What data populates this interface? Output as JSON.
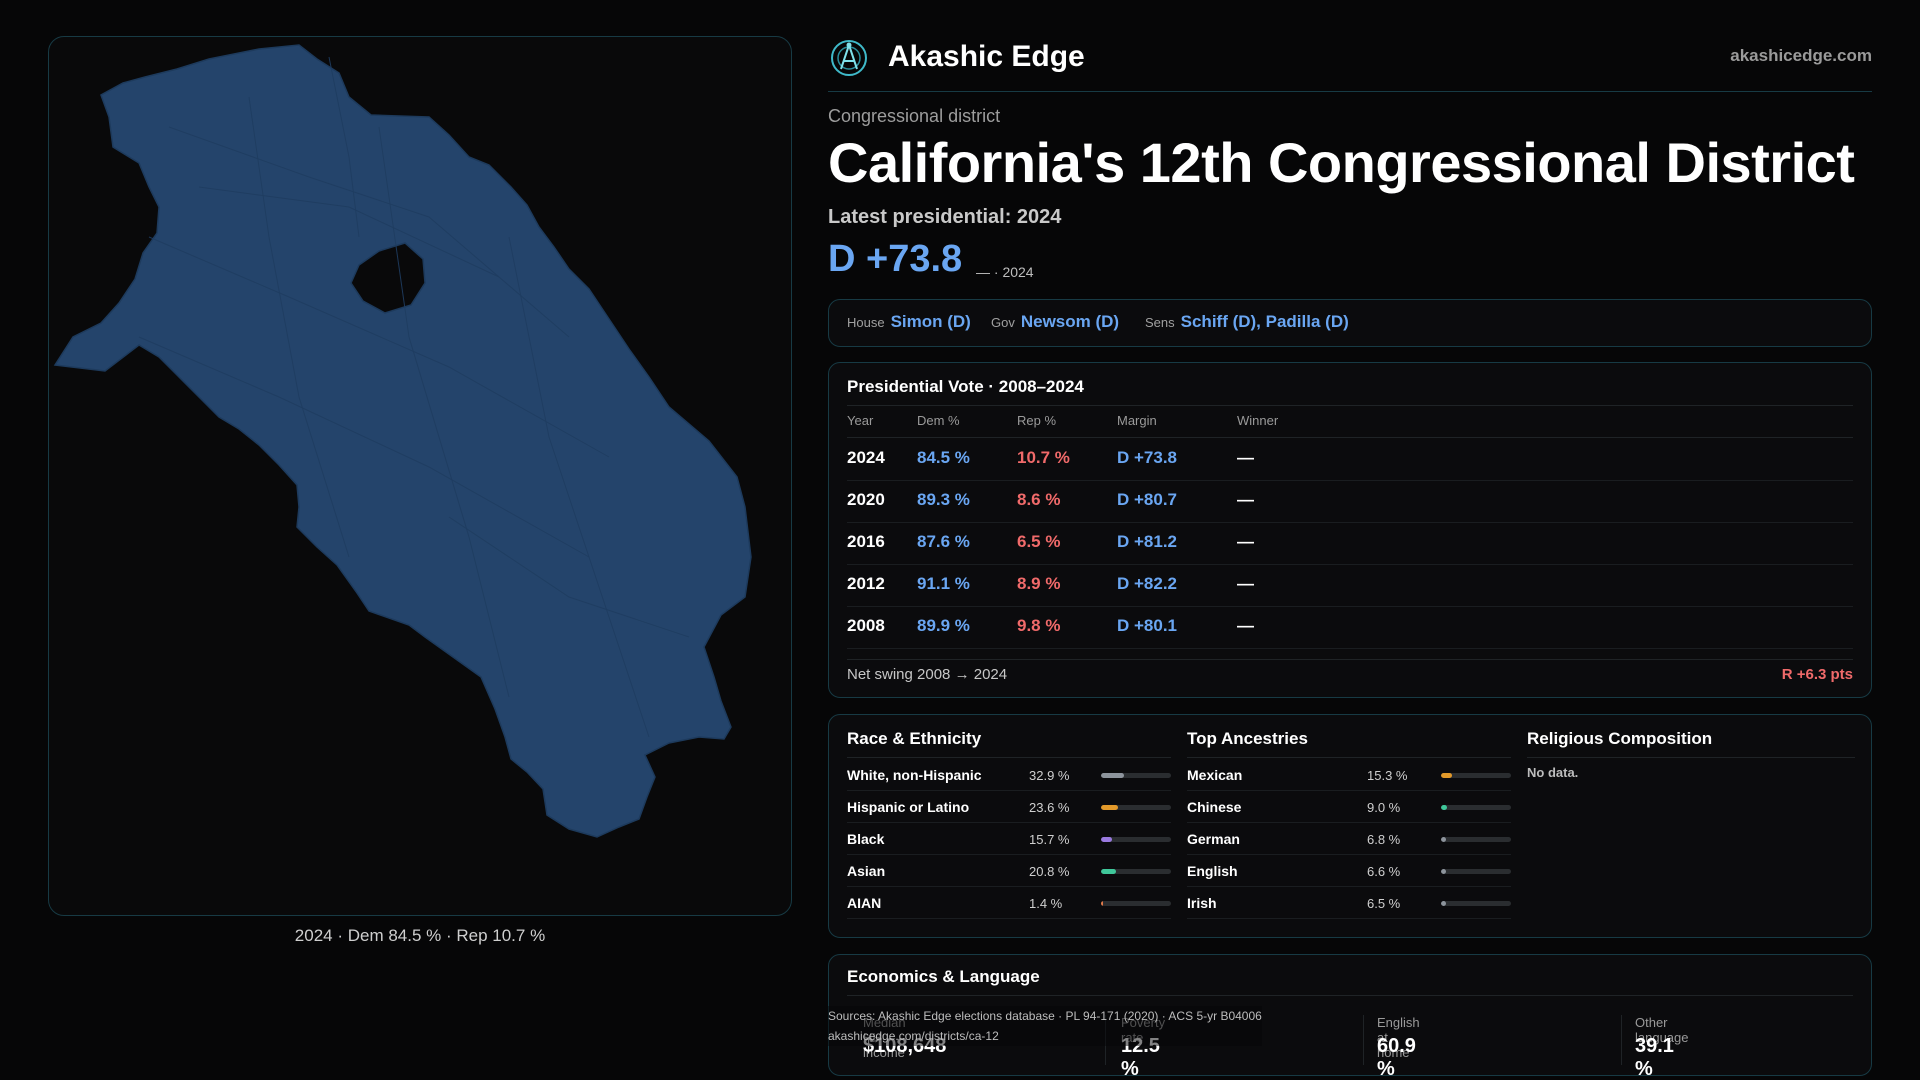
{
  "map": {
    "caption": "2024 · Dem 84.5 % · Rep 10.7 %",
    "fill_color": "#24446b",
    "stroke_color": "#1d3a5c"
  },
  "header": {
    "brand": "Akashic Edge",
    "site": "akashicedge.com",
    "logo_icon": "akashic-logo-icon"
  },
  "district": {
    "kicker": "Congressional district",
    "title": "California's 12th Congressional District",
    "latest_label": "Latest presidential: 2024",
    "margin": "D +73.8",
    "margin_sub": "— · 2024"
  },
  "officials": {
    "house_label": "House",
    "house_value": "Simon (D)",
    "gov_label": "Gov",
    "gov_value": "Newsom (D)",
    "sens_label": "Sens",
    "sens_value": "Schiff (D), Padilla (D)"
  },
  "presidential": {
    "title": "Presidential Vote · 2008–2024",
    "headers": {
      "year": "Year",
      "dem": "Dem %",
      "rep": "Rep %",
      "margin": "Margin",
      "winner": "Winner"
    },
    "rows": [
      {
        "year": "2024",
        "dem": "84.5 %",
        "rep": "10.7 %",
        "margin": "D +73.8",
        "winner": "—"
      },
      {
        "year": "2020",
        "dem": "89.3 %",
        "rep": "8.6 %",
        "margin": "D +80.7",
        "winner": "—"
      },
      {
        "year": "2016",
        "dem": "87.6 %",
        "rep": "6.5 %",
        "margin": "D +81.2",
        "winner": "—"
      },
      {
        "year": "2012",
        "dem": "91.1 %",
        "rep": "8.9 %",
        "margin": "D +82.2",
        "winner": "—"
      },
      {
        "year": "2008",
        "dem": "89.9 %",
        "rep": "9.8 %",
        "margin": "D +80.1",
        "winner": "—"
      }
    ],
    "swing_label": "Net swing 2008 → 2024",
    "swing_value": "R +6.3 pts"
  },
  "race": {
    "title": "Race & Ethnicity",
    "items": [
      {
        "label": "White, non-Hispanic",
        "value": "32.9 %",
        "pct": 32.9,
        "color": "#8d949c"
      },
      {
        "label": "Hispanic or Latino",
        "value": "23.6 %",
        "pct": 23.6,
        "color": "#e39a2a"
      },
      {
        "label": "Black",
        "value": "15.7 %",
        "pct": 15.7,
        "color": "#9a7ae0"
      },
      {
        "label": "Asian",
        "value": "20.8 %",
        "pct": 20.8,
        "color": "#3fc79a"
      },
      {
        "label": "AIAN",
        "value": "1.4 %",
        "pct": 1.4,
        "color": "#e07a4a"
      }
    ]
  },
  "ancestry": {
    "title": "Top Ancestries",
    "items": [
      {
        "label": "Mexican",
        "value": "15.3 %",
        "pct": 15.3,
        "color": "#e39a2a"
      },
      {
        "label": "Chinese",
        "value": "9.0 %",
        "pct": 9.0,
        "color": "#3fc79a"
      },
      {
        "label": "German",
        "value": "6.8 %",
        "pct": 6.8,
        "color": "#8d949c"
      },
      {
        "label": "English",
        "value": "6.6 %",
        "pct": 6.6,
        "color": "#8d949c"
      },
      {
        "label": "Irish",
        "value": "6.5 %",
        "pct": 6.5,
        "color": "#8d949c"
      }
    ]
  },
  "religion": {
    "title": "Religious Composition",
    "empty": "No data."
  },
  "economics": {
    "title": "Economics & Language",
    "stats": [
      {
        "label": "Median HH income",
        "value": "$108,648"
      },
      {
        "label": "Poverty rate",
        "value": "12.5 %"
      },
      {
        "label": "English at home",
        "value": "60.9 %"
      },
      {
        "label": "Other language",
        "value": "39.1 %"
      }
    ]
  },
  "sources": {
    "line1": "Sources: Akashic Edge elections database · PL 94-171 (2020) · ACS 5-yr B04006",
    "line2": "akashicedge.com/districts/ca-12"
  }
}
